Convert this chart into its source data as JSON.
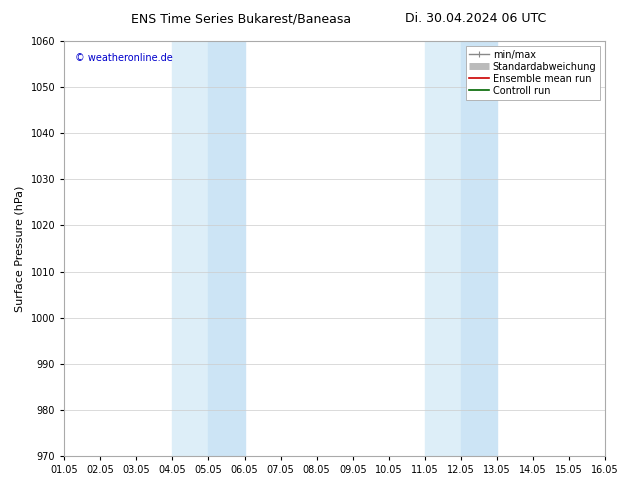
{
  "title_left": "ENS Time Series Bukarest/Baneasa",
  "title_right": "Di. 30.04.2024 06 UTC",
  "ylabel": "Surface Pressure (hPa)",
  "ylim": [
    970,
    1060
  ],
  "yticks": [
    970,
    980,
    990,
    1000,
    1010,
    1020,
    1030,
    1040,
    1050,
    1060
  ],
  "xlim_start": 0,
  "xlim_end": 15,
  "xtick_labels": [
    "01.05",
    "02.05",
    "03.05",
    "04.05",
    "05.05",
    "06.05",
    "07.05",
    "08.05",
    "09.05",
    "10.05",
    "11.05",
    "12.05",
    "13.05",
    "14.05",
    "15.05",
    "16.05"
  ],
  "shaded_bands": [
    {
      "x_start": 3.0,
      "x_end": 4.0,
      "color": "#ddeef8"
    },
    {
      "x_start": 4.0,
      "x_end": 5.0,
      "color": "#cce4f5"
    },
    {
      "x_start": 10.0,
      "x_end": 11.0,
      "color": "#ddeef8"
    },
    {
      "x_start": 11.0,
      "x_end": 12.0,
      "color": "#cce4f5"
    }
  ],
  "watermark": "© weatheronline.de",
  "watermark_color": "#0000cc",
  "background_color": "#ffffff",
  "plot_background": "#ffffff",
  "grid_color": "#cccccc",
  "legend_items": [
    {
      "label": "min/max",
      "color": "#888888",
      "lw": 1
    },
    {
      "label": "Standardabweichung",
      "color": "#bbbbbb",
      "lw": 5
    },
    {
      "label": "Ensemble mean run",
      "color": "#cc0000",
      "lw": 1.2
    },
    {
      "label": "Controll run",
      "color": "#006600",
      "lw": 1.2
    }
  ],
  "title_fontsize": 9,
  "tick_fontsize": 7,
  "ylabel_fontsize": 8,
  "watermark_fontsize": 7,
  "legend_fontsize": 7
}
